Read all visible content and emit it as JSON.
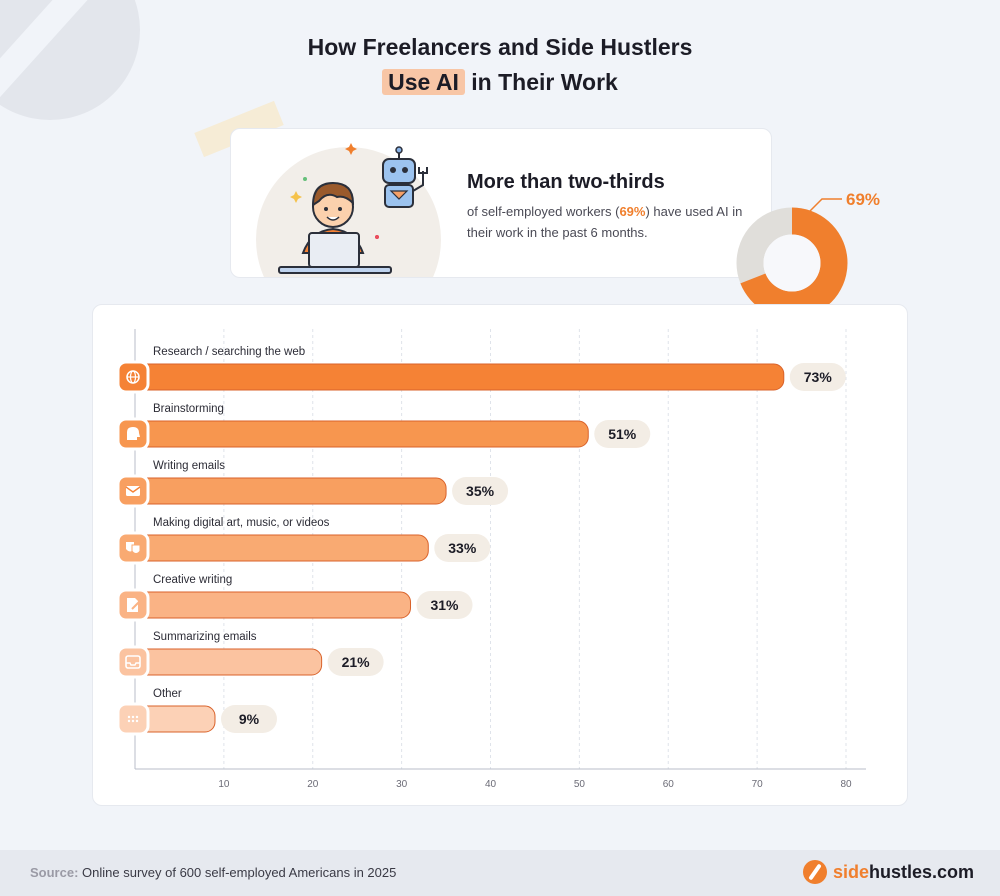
{
  "title": {
    "line1": "How Freelancers and Side Hustlers",
    "highlight": "Use AI",
    "line2_rest": " in Their Work"
  },
  "summary": {
    "headline": "More than two-thirds",
    "text_before": "of self-employed workers (",
    "pct": "69%",
    "text_after": ") have used AI in their work in the past 6 months.",
    "donut_value": 69,
    "donut_label": "69%"
  },
  "chart_data": {
    "type": "bar",
    "orientation": "horizontal",
    "categories": [
      "Research / searching the web",
      "Brainstorming",
      "Writing emails",
      "Making digital art, music, or videos",
      "Creative writing",
      "Summarizing emails",
      "Other"
    ],
    "values": [
      73,
      51,
      35,
      33,
      31,
      21,
      9
    ],
    "value_labels": [
      "73%",
      "51%",
      "35%",
      "33%",
      "31%",
      "21%",
      "9%"
    ],
    "icons": [
      "globe-icon",
      "brain-icon",
      "envelope-icon",
      "theater-masks-icon",
      "pen-document-icon",
      "inbox-icon",
      "dots-icon"
    ],
    "xticks": [
      10,
      20,
      30,
      40,
      50,
      60,
      70,
      80
    ],
    "xlim": [
      0,
      80
    ],
    "grid": true,
    "bar_colors": [
      "#f58235",
      "#f7964f",
      "#f89f60",
      "#f9aa72",
      "#fab385",
      "#fbc3a0",
      "#fcd1b6"
    ],
    "bar_stroke": "#d9622a",
    "label_bg": "#f3ede5"
  },
  "colors": {
    "accent": "#f07f2d",
    "donut_rest": "#e0deda"
  },
  "footer": {
    "source_label": "Source:",
    "source_text": " Online survey of 600 self-employed Americans in 2025",
    "brand_accent": "side",
    "brand_rest": "hustles.com"
  }
}
